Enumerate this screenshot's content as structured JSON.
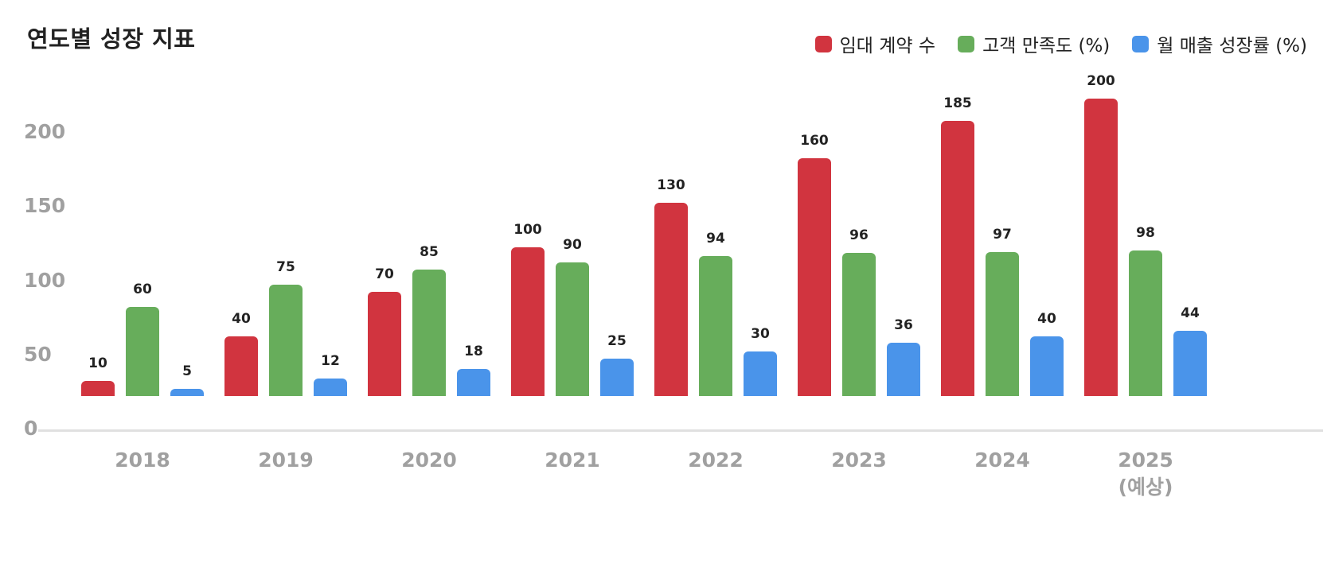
{
  "header": {
    "title": "연도별 성장 지표"
  },
  "legend": [
    {
      "label": "임대 계약 수",
      "color": "#d1343f"
    },
    {
      "label": "고객 만족도 (%)",
      "color": "#67ad5b"
    },
    {
      "label": "월 매출 성장률 (%)",
      "color": "#4a94ea"
    }
  ],
  "yaxis": {
    "ticks": [
      "0",
      "50",
      "100",
      "150",
      "200"
    ]
  },
  "xaxis": {
    "ticks": [
      "2018",
      "2019",
      "2020",
      "2021",
      "2022",
      "2023",
      "2024",
      "2025"
    ],
    "sublabels": [
      "",
      "",
      "",
      "",
      "",
      "",
      "",
      "(예상)"
    ]
  },
  "chart_data": {
    "type": "bar",
    "title": "연도별 성장 지표",
    "categories": [
      "2018",
      "2019",
      "2020",
      "2021",
      "2022",
      "2023",
      "2024",
      "2025 (예상)"
    ],
    "series": [
      {
        "name": "임대 계약 수",
        "color": "#d1343f",
        "values": [
          10,
          40,
          70,
          100,
          130,
          160,
          185,
          200
        ]
      },
      {
        "name": "고객 만족도 (%)",
        "color": "#67ad5b",
        "values": [
          60,
          75,
          85,
          90,
          94,
          96,
          97,
          98
        ]
      },
      {
        "name": "월 매출 성장률 (%)",
        "color": "#4a94ea",
        "values": [
          5,
          12,
          18,
          25,
          30,
          36,
          40,
          44
        ]
      }
    ],
    "xlabel": "",
    "ylabel": "",
    "yticks": [
      0,
      50,
      100,
      150,
      200
    ],
    "ylim": [
      0,
      220
    ],
    "legend_position": "top-right",
    "grid": false,
    "data_labels": true
  }
}
